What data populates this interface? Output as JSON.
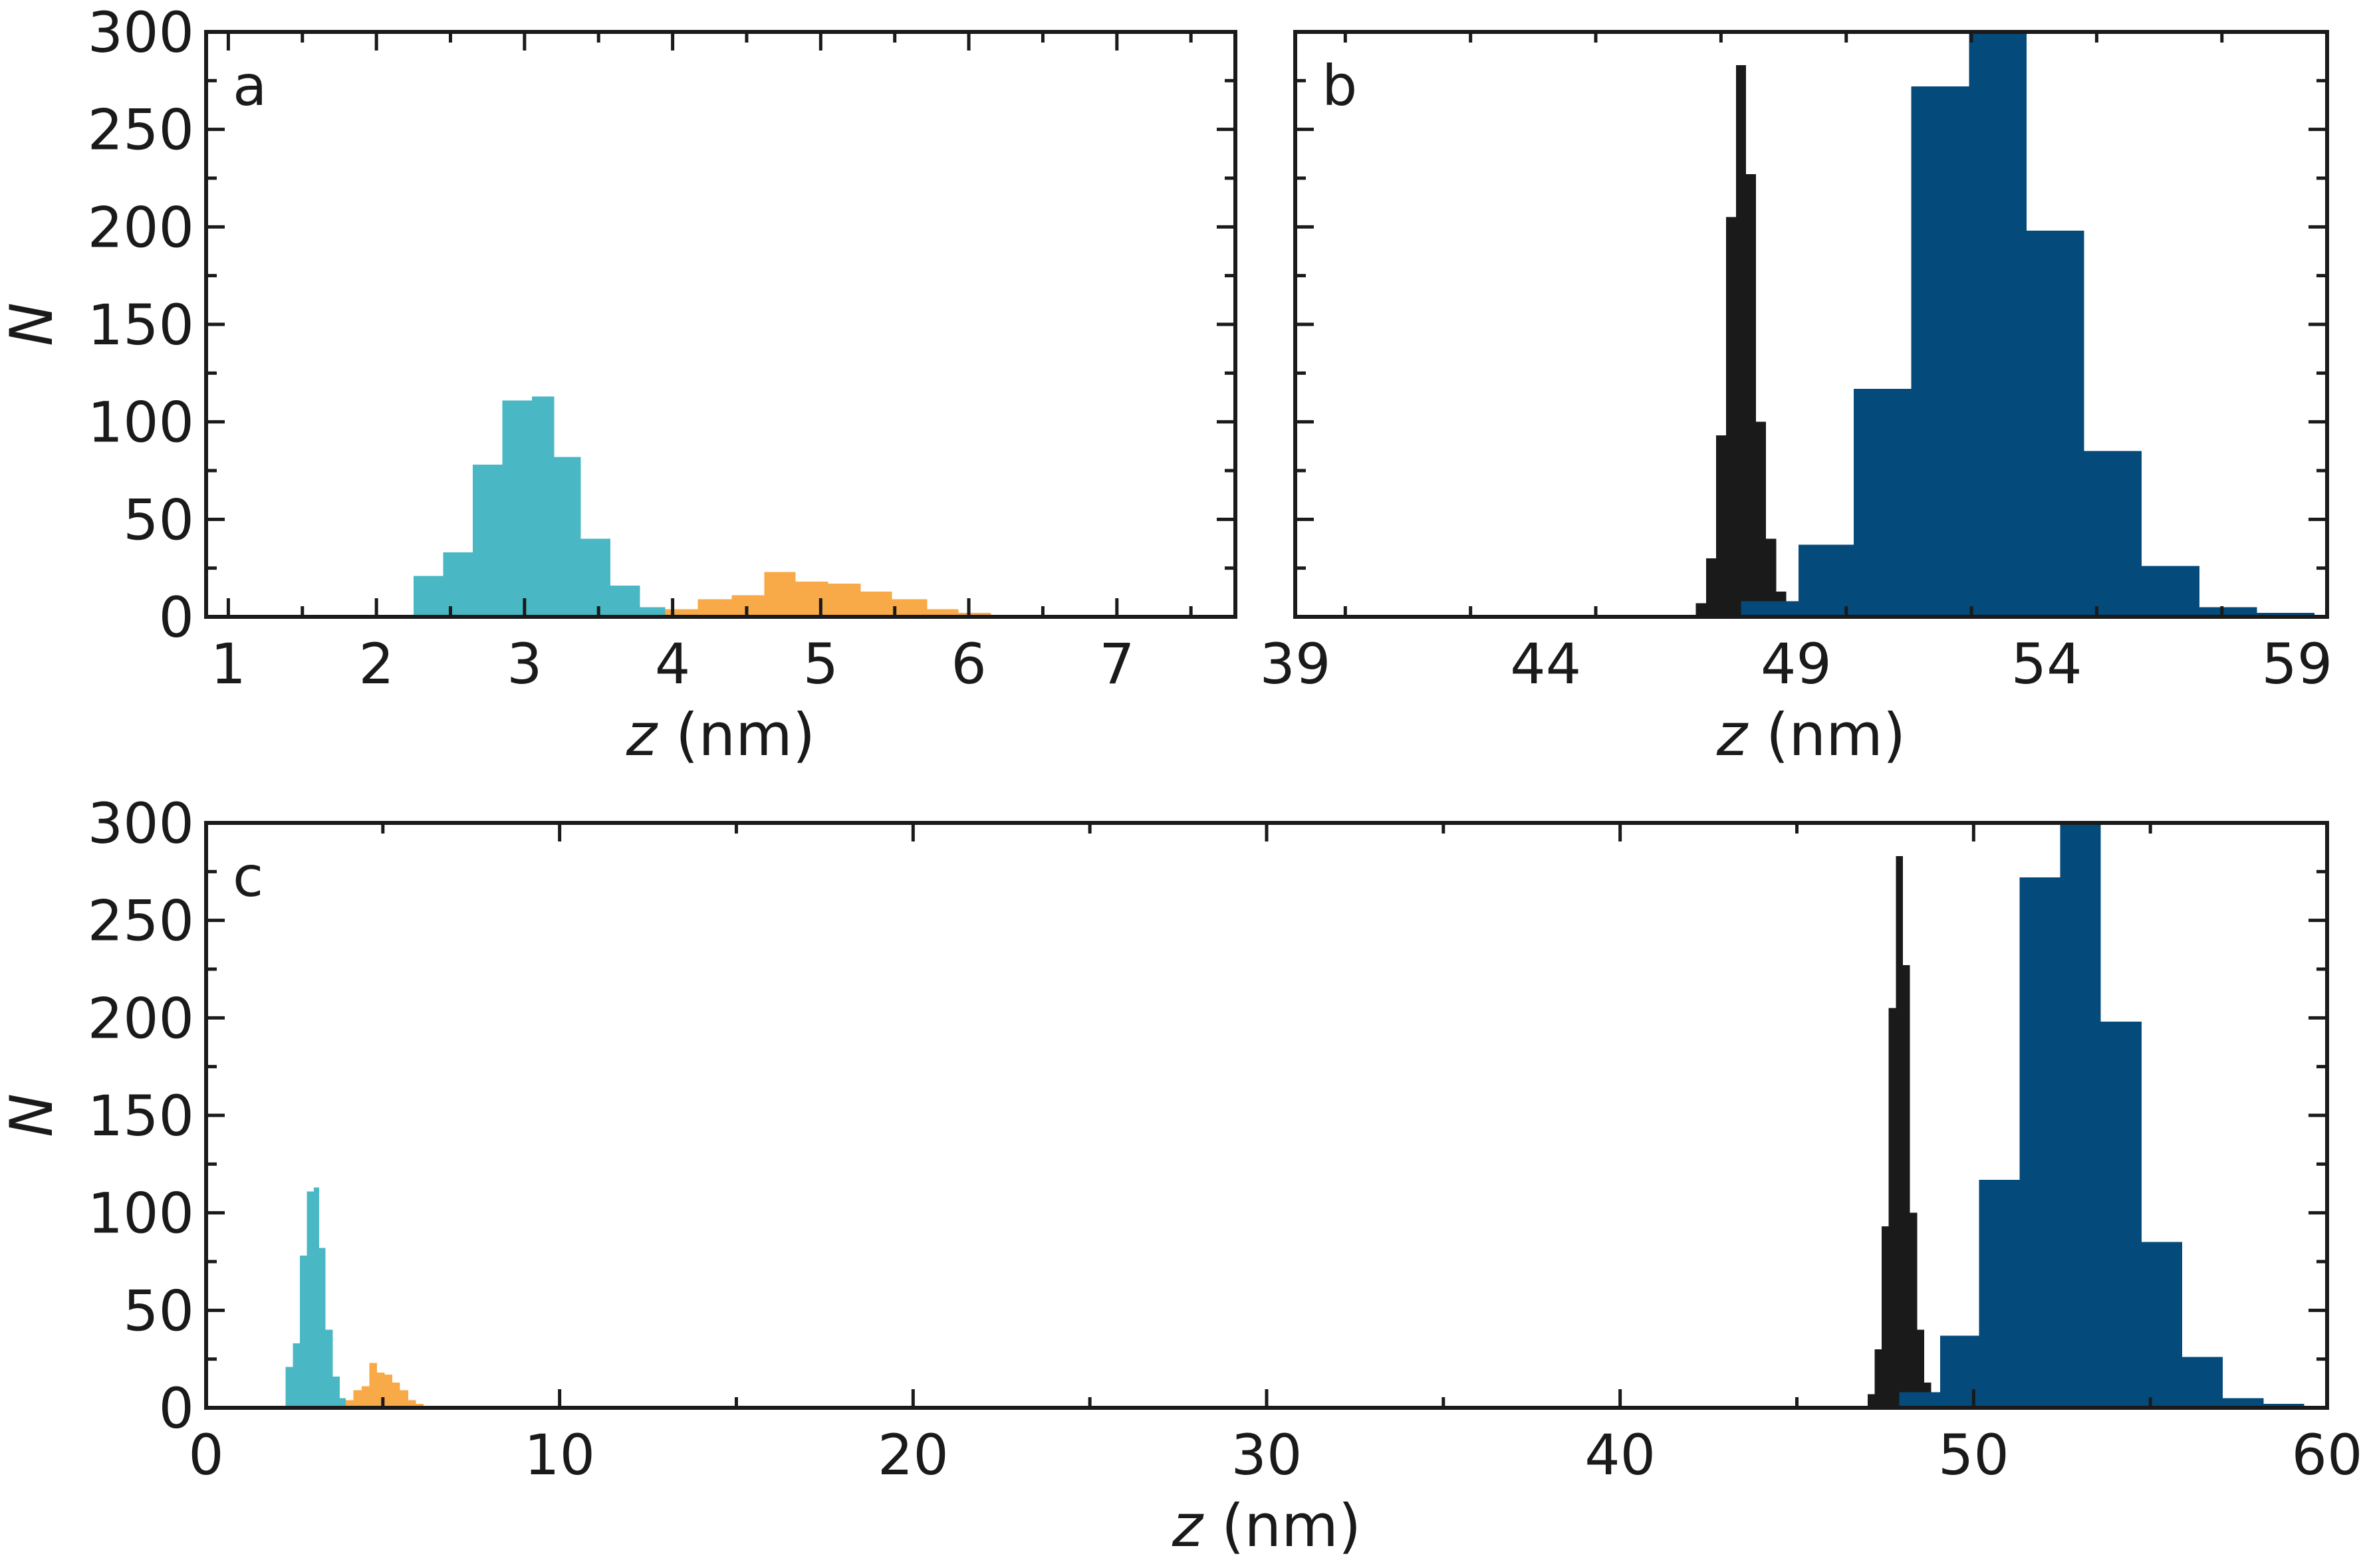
{
  "colors": {
    "cyan": "#4ab8c4",
    "orange": "#f8aa48",
    "black": "#1a1a1a",
    "navy": "#044a7a"
  },
  "chart_data": [
    {
      "type": "bar",
      "panel_label": "a",
      "xlabel_var": "z",
      "xlabel_unit": " (nm)",
      "ylabel": "N",
      "xlim": [
        0.85,
        7.8
      ],
      "ylim": [
        0,
        300
      ],
      "xticks": [
        1,
        2,
        3,
        4,
        5,
        6,
        7
      ],
      "yticks": [
        0,
        50,
        100,
        150,
        200,
        250,
        300
      ],
      "series": [
        {
          "color": "#4ab8c4",
          "bins": [
            {
              "x0": 2.05,
              "x1": 2.25,
              "value": 1
            },
            {
              "x0": 2.25,
              "x1": 2.45,
              "value": 21
            },
            {
              "x0": 2.45,
              "x1": 2.65,
              "value": 33
            },
            {
              "x0": 2.65,
              "x1": 2.85,
              "value": 78
            },
            {
              "x0": 2.85,
              "x1": 3.05,
              "value": 111
            },
            {
              "x0": 3.05,
              "x1": 3.2,
              "value": 113
            },
            {
              "x0": 3.2,
              "x1": 3.38,
              "value": 82
            },
            {
              "x0": 3.38,
              "x1": 3.58,
              "value": 40
            },
            {
              "x0": 3.58,
              "x1": 3.78,
              "value": 16
            },
            {
              "x0": 3.78,
              "x1": 3.95,
              "value": 5
            }
          ]
        },
        {
          "color": "#f8aa48",
          "bins": [
            {
              "x0": 3.95,
              "x1": 4.17,
              "value": 4
            },
            {
              "x0": 4.17,
              "x1": 4.4,
              "value": 9
            },
            {
              "x0": 4.4,
              "x1": 4.62,
              "value": 11
            },
            {
              "x0": 4.62,
              "x1": 4.83,
              "value": 23
            },
            {
              "x0": 4.83,
              "x1": 5.05,
              "value": 18
            },
            {
              "x0": 5.05,
              "x1": 5.27,
              "value": 17
            },
            {
              "x0": 5.27,
              "x1": 5.48,
              "value": 13
            },
            {
              "x0": 5.48,
              "x1": 5.72,
              "value": 9
            },
            {
              "x0": 5.72,
              "x1": 5.93,
              "value": 4
            },
            {
              "x0": 5.93,
              "x1": 6.15,
              "value": 2
            }
          ]
        }
      ]
    },
    {
      "type": "bar",
      "panel_label": "b",
      "xlabel_var": "z",
      "xlabel_unit": " (nm)",
      "ylabel": "",
      "xlim": [
        39,
        59.6
      ],
      "ylim": [
        0,
        300
      ],
      "xticks": [
        39,
        44,
        49,
        54,
        59
      ],
      "yticks": [
        0,
        50,
        100,
        150,
        200,
        250,
        300
      ],
      "series": [
        {
          "color": "#1a1a1a",
          "bins": [
            {
              "x0": 47.0,
              "x1": 47.2,
              "value": 7
            },
            {
              "x0": 47.2,
              "x1": 47.4,
              "value": 30
            },
            {
              "x0": 47.4,
              "x1": 47.6,
              "value": 93
            },
            {
              "x0": 47.6,
              "x1": 47.8,
              "value": 205
            },
            {
              "x0": 47.8,
              "x1": 48.0,
              "value": 283
            },
            {
              "x0": 48.0,
              "x1": 48.2,
              "value": 227
            },
            {
              "x0": 48.2,
              "x1": 48.4,
              "value": 100
            },
            {
              "x0": 48.4,
              "x1": 48.6,
              "value": 40
            },
            {
              "x0": 48.6,
              "x1": 48.8,
              "value": 13
            }
          ]
        },
        {
          "color": "#044a7a",
          "bins": [
            {
              "x0": 47.9,
              "x1": 49.05,
              "value": 8
            },
            {
              "x0": 49.05,
              "x1": 50.15,
              "value": 37
            },
            {
              "x0": 50.15,
              "x1": 51.3,
              "value": 117
            },
            {
              "x0": 51.3,
              "x1": 52.45,
              "value": 272
            },
            {
              "x0": 52.45,
              "x1": 53.6,
              "value": 300
            },
            {
              "x0": 53.6,
              "x1": 54.75,
              "value": 198
            },
            {
              "x0": 54.75,
              "x1": 55.9,
              "value": 85
            },
            {
              "x0": 55.9,
              "x1": 57.05,
              "value": 26
            },
            {
              "x0": 57.05,
              "x1": 58.2,
              "value": 5
            },
            {
              "x0": 58.2,
              "x1": 59.35,
              "value": 2
            }
          ]
        }
      ]
    },
    {
      "type": "bar",
      "panel_label": "c",
      "xlabel_var": "z",
      "xlabel_unit": " (nm)",
      "ylabel": "N",
      "xlim": [
        0,
        60
      ],
      "ylim": [
        0,
        300
      ],
      "xticks": [
        0,
        10,
        20,
        30,
        40,
        50,
        60
      ],
      "yticks": [
        0,
        50,
        100,
        150,
        200,
        250,
        300
      ],
      "series": [
        {
          "color": "#4ab8c4",
          "bins": [
            {
              "x0": 2.05,
              "x1": 2.25,
              "value": 1
            },
            {
              "x0": 2.25,
              "x1": 2.45,
              "value": 21
            },
            {
              "x0": 2.45,
              "x1": 2.65,
              "value": 33
            },
            {
              "x0": 2.65,
              "x1": 2.85,
              "value": 78
            },
            {
              "x0": 2.85,
              "x1": 3.05,
              "value": 111
            },
            {
              "x0": 3.05,
              "x1": 3.2,
              "value": 113
            },
            {
              "x0": 3.2,
              "x1": 3.38,
              "value": 82
            },
            {
              "x0": 3.38,
              "x1": 3.58,
              "value": 40
            },
            {
              "x0": 3.58,
              "x1": 3.78,
              "value": 16
            },
            {
              "x0": 3.78,
              "x1": 3.95,
              "value": 5
            }
          ]
        },
        {
          "color": "#f8aa48",
          "bins": [
            {
              "x0": 3.95,
              "x1": 4.17,
              "value": 4
            },
            {
              "x0": 4.17,
              "x1": 4.4,
              "value": 9
            },
            {
              "x0": 4.4,
              "x1": 4.62,
              "value": 11
            },
            {
              "x0": 4.62,
              "x1": 4.83,
              "value": 23
            },
            {
              "x0": 4.83,
              "x1": 5.05,
              "value": 18
            },
            {
              "x0": 5.05,
              "x1": 5.27,
              "value": 17
            },
            {
              "x0": 5.27,
              "x1": 5.48,
              "value": 13
            },
            {
              "x0": 5.48,
              "x1": 5.72,
              "value": 9
            },
            {
              "x0": 5.72,
              "x1": 5.93,
              "value": 4
            },
            {
              "x0": 5.93,
              "x1": 6.15,
              "value": 2
            }
          ]
        },
        {
          "color": "#1a1a1a",
          "bins": [
            {
              "x0": 47.0,
              "x1": 47.2,
              "value": 7
            },
            {
              "x0": 47.2,
              "x1": 47.4,
              "value": 30
            },
            {
              "x0": 47.4,
              "x1": 47.6,
              "value": 93
            },
            {
              "x0": 47.6,
              "x1": 47.8,
              "value": 205
            },
            {
              "x0": 47.8,
              "x1": 48.0,
              "value": 283
            },
            {
              "x0": 48.0,
              "x1": 48.2,
              "value": 227
            },
            {
              "x0": 48.2,
              "x1": 48.4,
              "value": 100
            },
            {
              "x0": 48.4,
              "x1": 48.6,
              "value": 40
            },
            {
              "x0": 48.6,
              "x1": 48.8,
              "value": 13
            }
          ]
        },
        {
          "color": "#044a7a",
          "bins": [
            {
              "x0": 47.9,
              "x1": 49.05,
              "value": 8
            },
            {
              "x0": 49.05,
              "x1": 50.15,
              "value": 37
            },
            {
              "x0": 50.15,
              "x1": 51.3,
              "value": 117
            },
            {
              "x0": 51.3,
              "x1": 52.45,
              "value": 272
            },
            {
              "x0": 52.45,
              "x1": 53.6,
              "value": 300
            },
            {
              "x0": 53.6,
              "x1": 54.75,
              "value": 198
            },
            {
              "x0": 54.75,
              "x1": 55.9,
              "value": 85
            },
            {
              "x0": 55.9,
              "x1": 57.05,
              "value": 26
            },
            {
              "x0": 57.05,
              "x1": 58.2,
              "value": 5
            },
            {
              "x0": 58.2,
              "x1": 59.35,
              "value": 2
            }
          ]
        }
      ]
    }
  ]
}
